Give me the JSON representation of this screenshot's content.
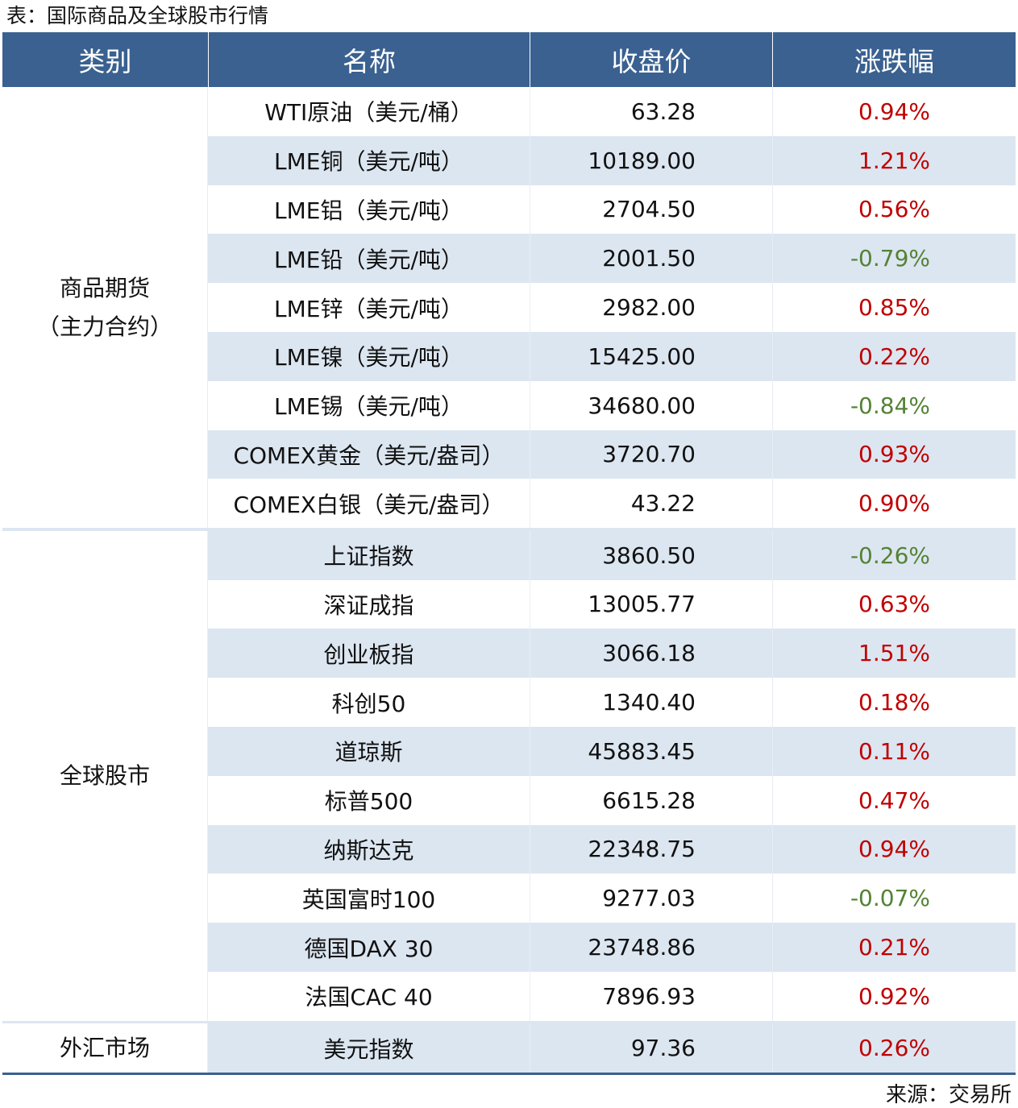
{
  "title": "表：国际商品及全球股市行情",
  "table": {
    "headers": [
      "类别",
      "名称",
      "收盘价",
      "涨跌幅"
    ],
    "groups": [
      {
        "category": [
          "商品期货",
          "（主力合约）"
        ],
        "rows": [
          [
            "WTI原油（美元/桶）",
            "63.28",
            "0.94%"
          ],
          [
            "LME铜（美元/吨）",
            "10189.00",
            "1.21%"
          ],
          [
            "LME铝（美元/吨）",
            "2704.50",
            "0.56%"
          ],
          [
            "LME铅（美元/吨）",
            "2001.50",
            "-0.79%"
          ],
          [
            "LME锌（美元/吨）",
            "2982.00",
            "0.85%"
          ],
          [
            "LME镍（美元/吨）",
            "15425.00",
            "0.22%"
          ],
          [
            "LME锡（美元/吨）",
            "34680.00",
            "-0.84%"
          ],
          [
            "COMEX黄金（美元/盎司）",
            "3720.70",
            "0.93%"
          ],
          [
            "COMEX白银（美元/盎司）",
            "43.22",
            "0.90%"
          ]
        ]
      },
      {
        "category": [
          "全球股市"
        ],
        "rows": [
          [
            "上证指数",
            "3860.50",
            "-0.26%"
          ],
          [
            "深证成指",
            "13005.77",
            "0.63%"
          ],
          [
            "创业板指",
            "3066.18",
            "1.51%"
          ],
          [
            "科创50",
            "1340.40",
            "0.18%"
          ],
          [
            "道琼斯",
            "45883.45",
            "0.11%"
          ],
          [
            "标普500",
            "6615.28",
            "0.47%"
          ],
          [
            "纳斯达克",
            "22348.75",
            "0.94%"
          ],
          [
            "英国富时100",
            "9277.03",
            "-0.07%"
          ],
          [
            "德国DAX 30",
            "23748.86",
            "0.21%"
          ],
          [
            "法国CAC 40",
            "7896.93",
            "0.92%"
          ]
        ]
      },
      {
        "category": [
          "外汇市场"
        ],
        "rows": [
          [
            "美元指数",
            "97.36",
            "0.26%"
          ]
        ]
      }
    ],
    "colors": {
      "header": "#3a6190",
      "stripe": "#dce6f1",
      "up": "#c00000",
      "down": "#548235"
    }
  },
  "source": "来源：交易所"
}
